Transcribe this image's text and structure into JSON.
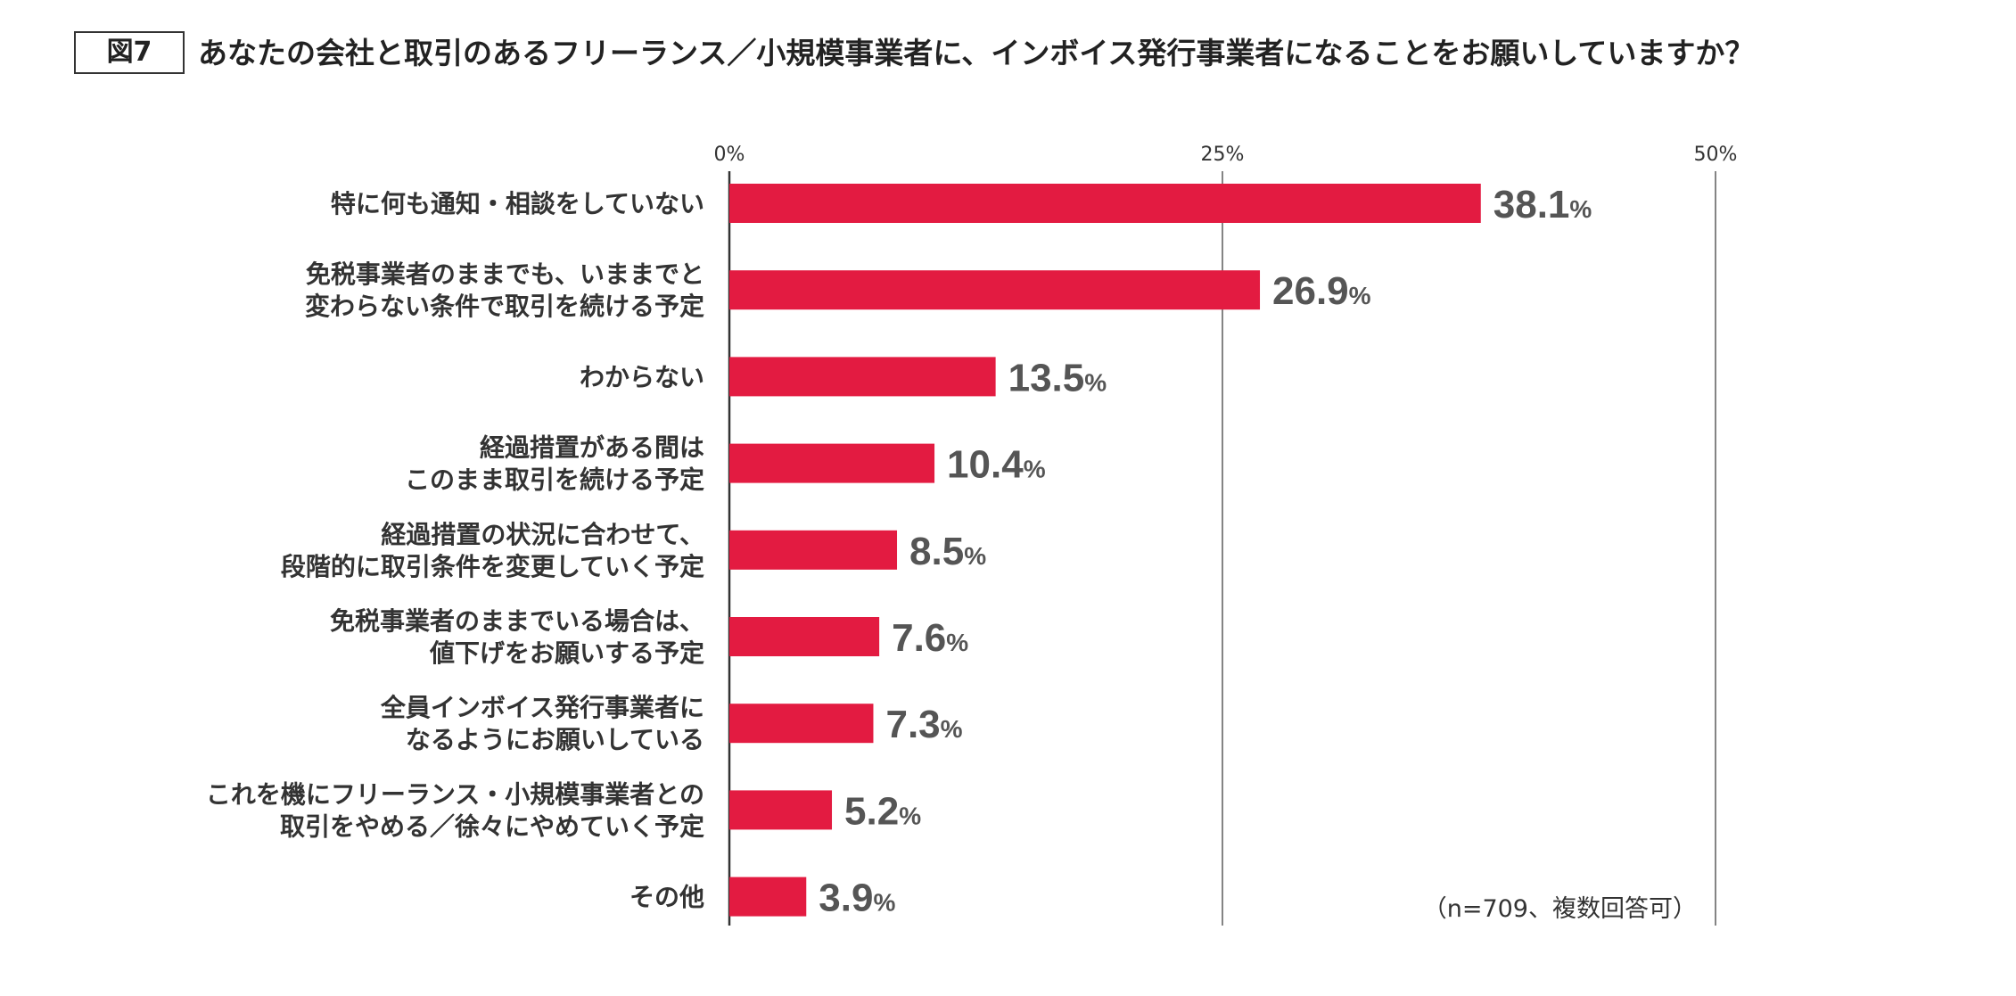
{
  "figure_label": "図7",
  "title": "あなたの会社と取引のあるフリーランス／小規模事業者に、インボイス発行事業者になることをお願いしていますか？",
  "note": "（n=709、複数回答可）",
  "colors": {
    "bar": "#e31b41",
    "text": "#333333",
    "value_text": "#555555",
    "axis": "#333333"
  },
  "chart_data": {
    "type": "bar",
    "orientation": "horizontal",
    "xlim": [
      0,
      50
    ],
    "ticks": [
      {
        "value": 0,
        "label": "0%"
      },
      {
        "value": 25,
        "label": "25%"
      },
      {
        "value": 50,
        "label": "50%"
      }
    ],
    "value_suffix": "%",
    "categories": [
      [
        "特に何も通知・相談をしていない"
      ],
      [
        "免税事業者のままでも、いままでと",
        "変わらない条件で取引を続ける予定"
      ],
      [
        "わからない"
      ],
      [
        "経過措置がある間は",
        "このまま取引を続ける予定"
      ],
      [
        "経過措置の状況に合わせて、",
        "段階的に取引条件を変更していく予定"
      ],
      [
        "免税事業者のままでいる場合は、",
        "値下げをお願いする予定"
      ],
      [
        "全員インボイス発行事業者に",
        "なるようにお願いしている"
      ],
      [
        "これを機にフリーランス・小規模事業者との",
        "取引をやめる／徐々にやめていく予定"
      ],
      [
        "その他"
      ]
    ],
    "values": [
      38.1,
      26.9,
      13.5,
      10.4,
      8.5,
      7.6,
      7.3,
      5.2,
      3.9
    ],
    "value_labels": [
      "38.1",
      "26.9",
      "13.5",
      "10.4",
      "8.5",
      "7.6",
      "7.3",
      "5.2",
      "3.9"
    ]
  }
}
